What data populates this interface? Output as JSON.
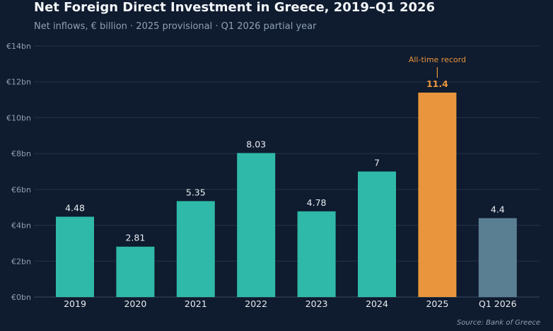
{
  "chart_data": {
    "type": "bar",
    "title": "Net Foreign Direct Investment in Greece, 2019–Q1 2026",
    "subtitle": "Net inflows, € billion  ·  2025 provisional  ·  Q1 2026 partial year",
    "source": "Source: Bank of Greece",
    "categories": [
      "2019",
      "2020",
      "2021",
      "2022",
      "2023",
      "2024",
      "2025",
      "Q1 2026"
    ],
    "values": [
      4.48,
      2.81,
      5.35,
      8.03,
      4.78,
      7,
      11.4,
      4.4
    ],
    "value_labels": [
      "4.48",
      "2.81",
      "5.35",
      "8.03",
      "4.78",
      "7",
      "11.4",
      "4.4"
    ],
    "bar_colors": [
      "#2fb9a8",
      "#2fb9a8",
      "#2fb9a8",
      "#2fb9a8",
      "#2fb9a8",
      "#2fb9a8",
      "#e8953d",
      "#5a7f92"
    ],
    "highlight_index": 6,
    "y_ticks": [
      0,
      2,
      4,
      6,
      8,
      10,
      12,
      14
    ],
    "y_tick_labels": [
      "€0bn",
      "€2bn",
      "€4bn",
      "€6bn",
      "€8bn",
      "€10bn",
      "€12bn",
      "€14bn"
    ],
    "ylim": [
      0,
      14
    ],
    "grid": true,
    "annotation": {
      "text": "All-time record",
      "category": "2025"
    },
    "colors": {
      "background": "#0f1b2e",
      "grid": "#24334a",
      "axis_text": "#8fa0b5",
      "text": "#e8edf3",
      "accent": "#e8953d"
    }
  }
}
